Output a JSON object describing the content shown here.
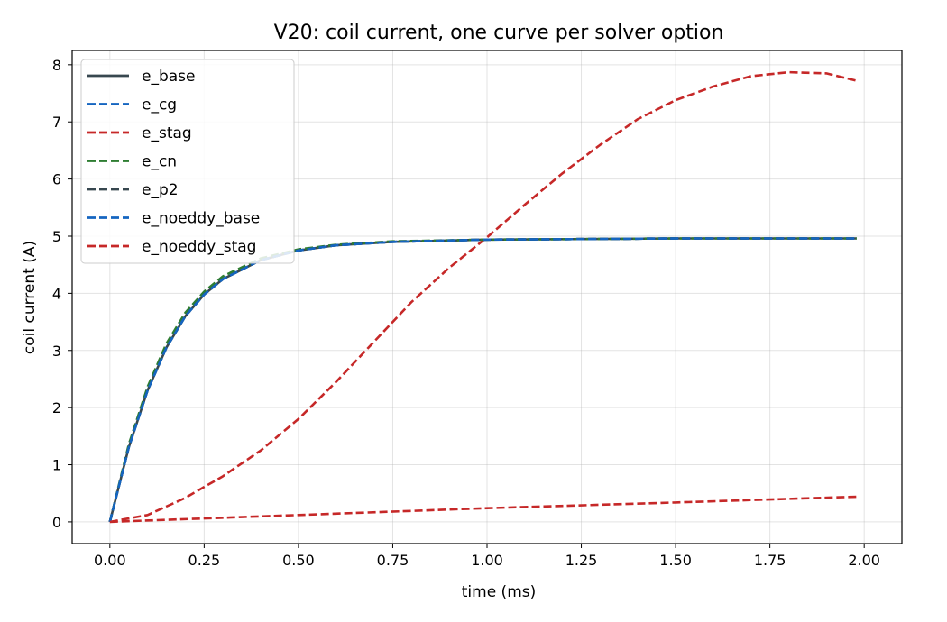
{
  "chart_data": {
    "type": "line",
    "title": "V20: coil current, one curve per solver option",
    "xlabel": "time (ms)",
    "ylabel": "coil current (A)",
    "xlim": [
      -0.1,
      2.1
    ],
    "ylim": [
      -0.38,
      8.25
    ],
    "xticks": [
      0.0,
      0.25,
      0.5,
      0.75,
      1.0,
      1.25,
      1.5,
      1.75,
      2.0
    ],
    "xtick_labels": [
      "0.00",
      "0.25",
      "0.50",
      "0.75",
      "1.00",
      "1.25",
      "1.50",
      "1.75",
      "2.00"
    ],
    "yticks": [
      0,
      1,
      2,
      3,
      4,
      5,
      6,
      7,
      8
    ],
    "ytick_labels": [
      "0",
      "1",
      "2",
      "3",
      "4",
      "5",
      "6",
      "7",
      "8"
    ],
    "grid": true,
    "legend_position": "top-left",
    "series": [
      {
        "name": "e_base",
        "color": "#37474f",
        "dash": "solid",
        "x": [
          0,
          0.05,
          0.1,
          0.15,
          0.2,
          0.25,
          0.3,
          0.4,
          0.5,
          0.6,
          0.75,
          1.0,
          1.25,
          1.5,
          1.75,
          1.98
        ],
        "y": [
          0,
          1.3,
          2.3,
          3.05,
          3.6,
          3.98,
          4.25,
          4.58,
          4.75,
          4.84,
          4.9,
          4.94,
          4.95,
          4.96,
          4.96,
          4.96
        ]
      },
      {
        "name": "e_cg",
        "color": "#1565c0",
        "dash": "dashed",
        "x": [
          0,
          0.05,
          0.1,
          0.15,
          0.2,
          0.25,
          0.3,
          0.4,
          0.5,
          0.6,
          0.75,
          1.0,
          1.25,
          1.5,
          1.75,
          1.98
        ],
        "y": [
          0,
          1.3,
          2.3,
          3.05,
          3.6,
          3.98,
          4.25,
          4.58,
          4.75,
          4.84,
          4.9,
          4.94,
          4.95,
          4.96,
          4.96,
          4.96
        ]
      },
      {
        "name": "e_stag",
        "color": "#c62828",
        "dash": "dashed",
        "x": [
          0,
          0.1,
          0.2,
          0.3,
          0.4,
          0.5,
          0.6,
          0.7,
          0.8,
          0.9,
          1.0,
          1.1,
          1.2,
          1.3,
          1.4,
          1.5,
          1.6,
          1.7,
          1.8,
          1.9,
          1.98
        ],
        "y": [
          0,
          0.12,
          0.42,
          0.8,
          1.25,
          1.8,
          2.45,
          3.15,
          3.85,
          4.45,
          4.98,
          5.55,
          6.1,
          6.6,
          7.05,
          7.38,
          7.62,
          7.8,
          7.87,
          7.85,
          7.72
        ]
      },
      {
        "name": "e_cn",
        "color": "#2e7d32",
        "dash": "dashed",
        "x": [
          0,
          0.05,
          0.1,
          0.15,
          0.2,
          0.25,
          0.3,
          0.4,
          0.5,
          0.6,
          0.75,
          1.0,
          1.25,
          1.5,
          1.75,
          1.98
        ],
        "y": [
          0,
          1.35,
          2.36,
          3.12,
          3.66,
          4.03,
          4.3,
          4.61,
          4.77,
          4.85,
          4.91,
          4.94,
          4.95,
          4.96,
          4.96,
          4.96
        ]
      },
      {
        "name": "e_p2",
        "color": "#37474f",
        "dash": "dashed",
        "x": [
          0,
          0.05,
          0.1,
          0.15,
          0.2,
          0.25,
          0.3,
          0.4,
          0.5,
          0.6,
          0.75,
          1.0,
          1.25,
          1.5,
          1.75,
          1.98
        ],
        "y": [
          0,
          1.3,
          2.3,
          3.05,
          3.6,
          3.98,
          4.25,
          4.58,
          4.75,
          4.84,
          4.9,
          4.94,
          4.95,
          4.96,
          4.96,
          4.96
        ]
      },
      {
        "name": "e_noeddy_base",
        "color": "#1565c0",
        "dash": "dashed",
        "x": [
          0,
          0.05,
          0.1,
          0.15,
          0.2,
          0.25,
          0.3,
          0.4,
          0.5,
          0.6,
          0.75,
          1.0,
          1.25,
          1.5,
          1.75,
          1.98
        ],
        "y": [
          0,
          1.3,
          2.3,
          3.05,
          3.6,
          3.98,
          4.25,
          4.58,
          4.75,
          4.84,
          4.9,
          4.94,
          4.95,
          4.96,
          4.96,
          4.96
        ]
      },
      {
        "name": "e_noeddy_stag",
        "color": "#c62828",
        "dash": "dashed",
        "x": [
          0,
          0.5,
          1.0,
          1.5,
          1.98
        ],
        "y": [
          0,
          0.12,
          0.24,
          0.34,
          0.44
        ]
      }
    ]
  }
}
